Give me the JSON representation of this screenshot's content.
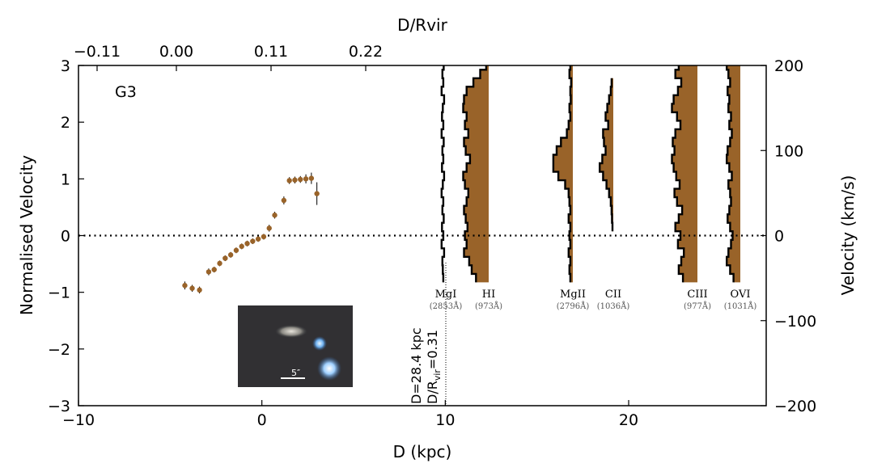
{
  "chart_data": {
    "type": "scatter",
    "panel_label": "G3",
    "xlabel": "D (kpc)",
    "ylabel": "Normalised Velocity",
    "top_xlabel": "D/Rvir",
    "right_ylabel": "Velocity (km/s)",
    "xlim": [
      -10,
      27.5
    ],
    "ylim": [
      -3,
      3
    ],
    "right_ylim": [
      -200,
      200
    ],
    "x_ticks": [
      -10,
      0,
      10,
      20
    ],
    "x_tick_labels": [
      "−10",
      "0",
      "10",
      "20"
    ],
    "y_ticks": [
      -3,
      -2,
      -1,
      0,
      1,
      2,
      3
    ],
    "y_tick_labels": [
      "−3",
      "−2",
      "−1",
      "0",
      "1",
      "2",
      "3"
    ],
    "top_ticks": [
      -0.11,
      0.0,
      0.11,
      0.22
    ],
    "top_tick_labels": [
      "−0.11",
      "0.00",
      "0.11",
      "0.22"
    ],
    "right_ticks": [
      -200,
      -100,
      0,
      100,
      200
    ],
    "right_tick_labels": [
      "−200",
      "−100",
      "0",
      "100",
      "200"
    ],
    "zero_line": true,
    "grid": false,
    "rotation_curve": {
      "color": "#996329",
      "points": [
        {
          "x": -4.2,
          "y": -0.88,
          "err": 0.07
        },
        {
          "x": -3.8,
          "y": -0.93,
          "err": 0.06
        },
        {
          "x": -3.4,
          "y": -0.96,
          "err": 0.06
        },
        {
          "x": -2.9,
          "y": -0.64,
          "err": 0.06
        },
        {
          "x": -2.6,
          "y": -0.6,
          "err": 0.05
        },
        {
          "x": -2.3,
          "y": -0.49,
          "err": 0.05
        },
        {
          "x": -2.0,
          "y": -0.4,
          "err": 0.05
        },
        {
          "x": -1.7,
          "y": -0.34,
          "err": 0.05
        },
        {
          "x": -1.4,
          "y": -0.26,
          "err": 0.05
        },
        {
          "x": -1.1,
          "y": -0.19,
          "err": 0.05
        },
        {
          "x": -0.8,
          "y": -0.14,
          "err": 0.05
        },
        {
          "x": -0.5,
          "y": -0.1,
          "err": 0.05
        },
        {
          "x": -0.2,
          "y": -0.06,
          "err": 0.05
        },
        {
          "x": 0.1,
          "y": -0.02,
          "err": 0.05
        },
        {
          "x": 0.4,
          "y": 0.13,
          "err": 0.06
        },
        {
          "x": 0.7,
          "y": 0.36,
          "err": 0.06
        },
        {
          "x": 1.2,
          "y": 0.62,
          "err": 0.07
        },
        {
          "x": 1.5,
          "y": 0.97,
          "err": 0.06
        },
        {
          "x": 1.8,
          "y": 0.98,
          "err": 0.06
        },
        {
          "x": 2.1,
          "y": 0.99,
          "err": 0.06
        },
        {
          "x": 2.4,
          "y": 1.0,
          "err": 0.08
        },
        {
          "x": 2.7,
          "y": 1.01,
          "err": 0.1
        },
        {
          "x": 3.0,
          "y": 0.74,
          "err": 0.2
        }
      ]
    },
    "sightline": {
      "label_line1": "D=28.4 kpc",
      "label_line2": "D/R",
      "label_sub": "vir",
      "label_tail": "=0.31"
    },
    "inset": {
      "scale_label": "5″"
    },
    "absorption_lines": [
      {
        "ion": "MgI",
        "wavelength": "(2853Å)",
        "filled": false,
        "velocities": [
          200,
          190,
          180,
          170,
          160,
          150,
          140,
          130,
          120,
          110,
          100,
          90,
          80,
          70,
          60,
          50,
          40,
          30,
          20,
          10,
          0,
          -10,
          -20,
          -30,
          -40,
          -50
        ],
        "depth": [
          0.25,
          0.4,
          0.3,
          0.5,
          0.2,
          0.35,
          0.45,
          0.3,
          0.5,
          0.25,
          0.4,
          0.3,
          0.45,
          0.2,
          0.35,
          0.5,
          0.3,
          0.4,
          0.25,
          0.45,
          0.3,
          0.5,
          0.2,
          0.4,
          0.35,
          0.3
        ]
      },
      {
        "ion": "HI",
        "wavelength": "(973Å)",
        "filled": true,
        "velocities": [
          200,
          190,
          180,
          170,
          160,
          150,
          140,
          130,
          120,
          110,
          100,
          90,
          80,
          70,
          60,
          50,
          40,
          30,
          20,
          10,
          0,
          -10,
          -20,
          -30,
          -40,
          -50
        ],
        "depth": [
          0.3,
          1.0,
          1.8,
          2.6,
          2.9,
          3.0,
          2.6,
          2.8,
          2.4,
          2.9,
          2.7,
          2.2,
          2.6,
          3.0,
          2.8,
          2.4,
          2.6,
          2.9,
          2.7,
          2.5,
          2.8,
          2.6,
          2.9,
          2.3,
          2.0,
          1.5
        ]
      },
      {
        "ion": "MgII",
        "wavelength": "(2796Å)",
        "filled": true,
        "velocities": [
          200,
          190,
          180,
          170,
          160,
          150,
          140,
          130,
          120,
          110,
          100,
          90,
          80,
          70,
          60,
          50,
          40,
          30,
          20,
          10,
          0,
          -10,
          -20,
          -30,
          -40,
          -50
        ],
        "depth": [
          0.3,
          0.4,
          0.2,
          0.3,
          0.25,
          0.4,
          0.3,
          0.5,
          0.7,
          1.4,
          1.9,
          2.3,
          2.3,
          1.7,
          0.9,
          0.5,
          0.4,
          0.3,
          0.5,
          0.3,
          0.4,
          0.3,
          0.5,
          0.3,
          0.4,
          0.3
        ]
      },
      {
        "ion": "CII",
        "wavelength": "(1036Å)",
        "filled": true,
        "velocities": [
          180,
          170,
          160,
          150,
          140,
          130,
          120,
          110,
          100,
          90,
          80,
          70,
          60,
          50,
          40,
          30,
          20,
          10
        ],
        "depth": [
          0.2,
          0.3,
          0.5,
          0.7,
          0.9,
          0.6,
          1.2,
          1.1,
          0.9,
          1.3,
          1.6,
          1.2,
          0.8,
          0.5,
          0.3,
          0.2,
          0.15,
          0.1
        ]
      },
      {
        "ion": "CIII",
        "wavelength": "(977Å)",
        "filled": true,
        "velocities": [
          200,
          190,
          180,
          170,
          160,
          150,
          140,
          130,
          120,
          110,
          100,
          90,
          80,
          70,
          60,
          50,
          40,
          30,
          20,
          10,
          0,
          -10,
          -20,
          -30,
          -40,
          -50
        ],
        "depth": [
          2.2,
          2.6,
          1.9,
          2.3,
          2.8,
          3.0,
          2.4,
          2.0,
          2.6,
          2.9,
          2.7,
          3.0,
          2.8,
          2.5,
          2.1,
          2.7,
          2.4,
          1.8,
          2.2,
          2.6,
          2.0,
          2.3,
          1.6,
          1.9,
          2.2,
          1.7
        ]
      },
      {
        "ion": "OVI",
        "wavelength": "(1031Å)",
        "filled": true,
        "velocities": [
          200,
          190,
          180,
          170,
          160,
          150,
          140,
          130,
          120,
          110,
          100,
          90,
          80,
          70,
          60,
          50,
          40,
          30,
          20,
          10,
          0,
          -10,
          -20,
          -30,
          -40,
          -50
        ],
        "depth": [
          1.6,
          1.4,
          1.2,
          1.5,
          1.3,
          1.4,
          1.1,
          1.3,
          1.0,
          1.2,
          1.5,
          1.6,
          1.3,
          1.0,
          1.4,
          1.2,
          1.1,
          1.3,
          1.5,
          1.2,
          0.9,
          1.1,
          1.4,
          1.6,
          1.2,
          0.8
        ]
      }
    ]
  }
}
